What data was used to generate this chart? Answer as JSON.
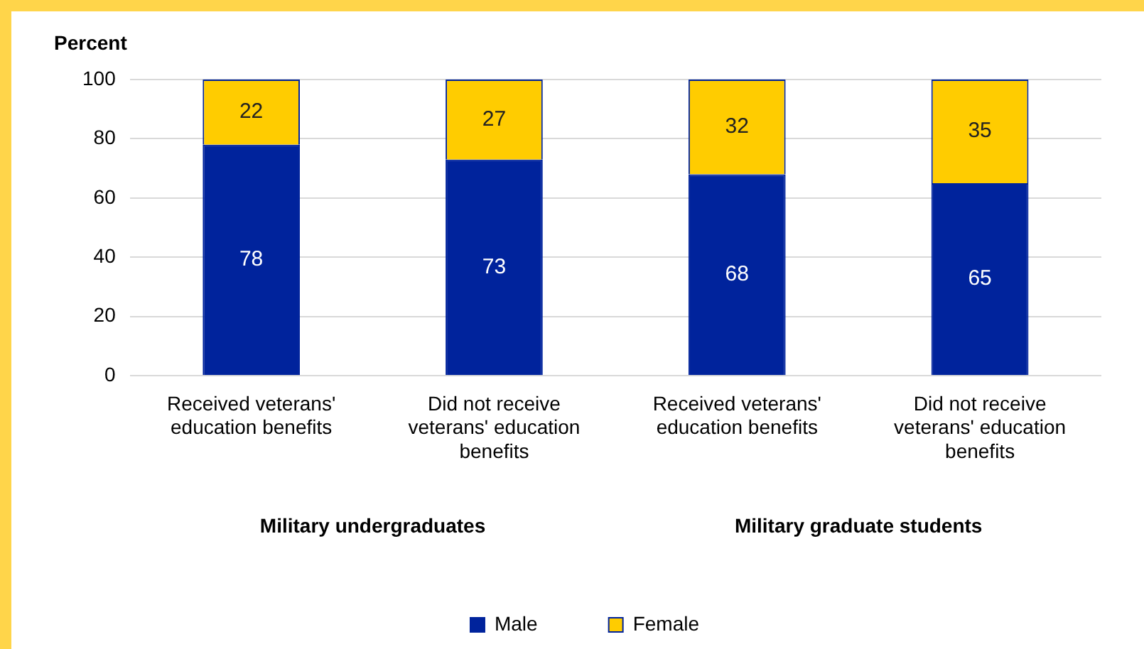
{
  "chart_data": {
    "type": "bar",
    "ylabel": "Percent",
    "categories": [
      "Received veterans' education benefits",
      "Did not receive veterans' education benefits",
      "Received veterans' education benefits",
      "Did not receive veterans' education benefits"
    ],
    "series": [
      {
        "name": "Male",
        "color": "#00239c",
        "values": [
          78,
          73,
          68,
          65
        ]
      },
      {
        "name": "Female",
        "color": "#ffcc00",
        "values": [
          22,
          27,
          32,
          35
        ]
      }
    ],
    "stacked": true,
    "ylim": [
      0,
      100
    ],
    "yticks": [
      0,
      20,
      40,
      60,
      80,
      100
    ],
    "grid": "y",
    "legend": "bottom",
    "data_labels": true,
    "annotations": [
      "Military undergraduates",
      "Military graduate students"
    ]
  }
}
